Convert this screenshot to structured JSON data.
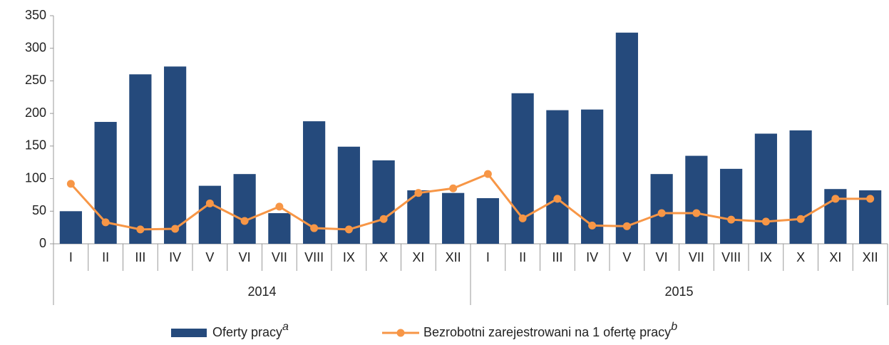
{
  "chart_data": {
    "type": "bar",
    "categories": [
      "I",
      "II",
      "III",
      "IV",
      "V",
      "VI",
      "VII",
      "VIII",
      "IX",
      "X",
      "XI",
      "XII",
      "I",
      "II",
      "III",
      "IV",
      "V",
      "VI",
      "VII",
      "VIII",
      "IX",
      "X",
      "XI",
      "XII"
    ],
    "years": [
      "2014",
      "2015"
    ],
    "series": [
      {
        "name": "Oferty pracy",
        "note": "a",
        "type": "bar",
        "color": "#254a7c",
        "values": [
          50,
          187,
          260,
          272,
          89,
          107,
          47,
          188,
          149,
          128,
          82,
          78,
          70,
          231,
          205,
          206,
          324,
          107,
          135,
          115,
          169,
          174,
          84,
          82
        ]
      },
      {
        "name": "Bezrobotni zarejestrowani na 1 ofertę pracy",
        "note": "b",
        "type": "line",
        "color": "#f79646",
        "values": [
          92,
          33,
          22,
          23,
          62,
          35,
          57,
          24,
          22,
          38,
          78,
          85,
          107,
          39,
          69,
          28,
          27,
          47,
          47,
          37,
          34,
          38,
          69,
          69
        ]
      }
    ],
    "ylim": [
      0,
      350
    ],
    "yticks": [
      0,
      50,
      100,
      150,
      200,
      250,
      300,
      350
    ],
    "grid": false,
    "legend": "bottom"
  }
}
